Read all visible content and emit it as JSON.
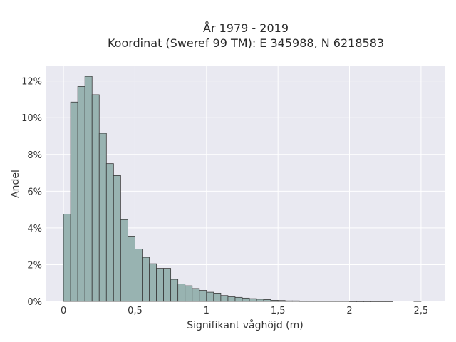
{
  "chart_data": {
    "type": "bar",
    "title_lines": [
      "År 1979 - 2019",
      "Koordinat (Sweref 99 TM): E 345988, N 6218583"
    ],
    "xlabel": "Signifikant våghöjd (m)",
    "ylabel": "Andel",
    "xlim": [
      -0.12,
      2.67
    ],
    "ylim": [
      0,
      12.8
    ],
    "x_ticks": [
      0,
      0.5,
      1,
      1.5,
      2,
      2.5
    ],
    "x_tick_labels": [
      "0",
      "0,5",
      "1",
      "1,5",
      "2",
      "2,5"
    ],
    "y_ticks": [
      0,
      2,
      4,
      6,
      8,
      10,
      12
    ],
    "y_tick_labels": [
      "0%",
      "2%",
      "4%",
      "6%",
      "8%",
      "10%",
      "12%"
    ],
    "bin_width": 0.05,
    "bin_start": 0,
    "values": [
      4.75,
      10.85,
      11.7,
      12.25,
      11.25,
      9.15,
      7.5,
      6.85,
      4.45,
      3.55,
      2.85,
      2.4,
      2.05,
      1.8,
      1.8,
      1.2,
      0.95,
      0.85,
      0.7,
      0.6,
      0.5,
      0.45,
      0.32,
      0.25,
      0.22,
      0.18,
      0.15,
      0.12,
      0.1,
      0.06,
      0.05,
      0.03,
      0.03,
      0.02,
      0.02,
      0.02,
      0.02,
      0.02,
      0.02,
      0.02,
      0.01,
      0.01,
      0.01,
      0.01,
      0.01,
      0.01,
      0.0,
      0.0,
      0.0,
      0.02,
      0.0,
      0.0,
      0.0,
      0.0,
      0.0,
      0.02
    ],
    "colors": {
      "bar_fill": "#98b3b1",
      "bar_edge": "#3a3a3a",
      "plot_bg": "#e9e9f1",
      "grid": "#ffffff"
    },
    "grid": true,
    "legend": "none"
  }
}
